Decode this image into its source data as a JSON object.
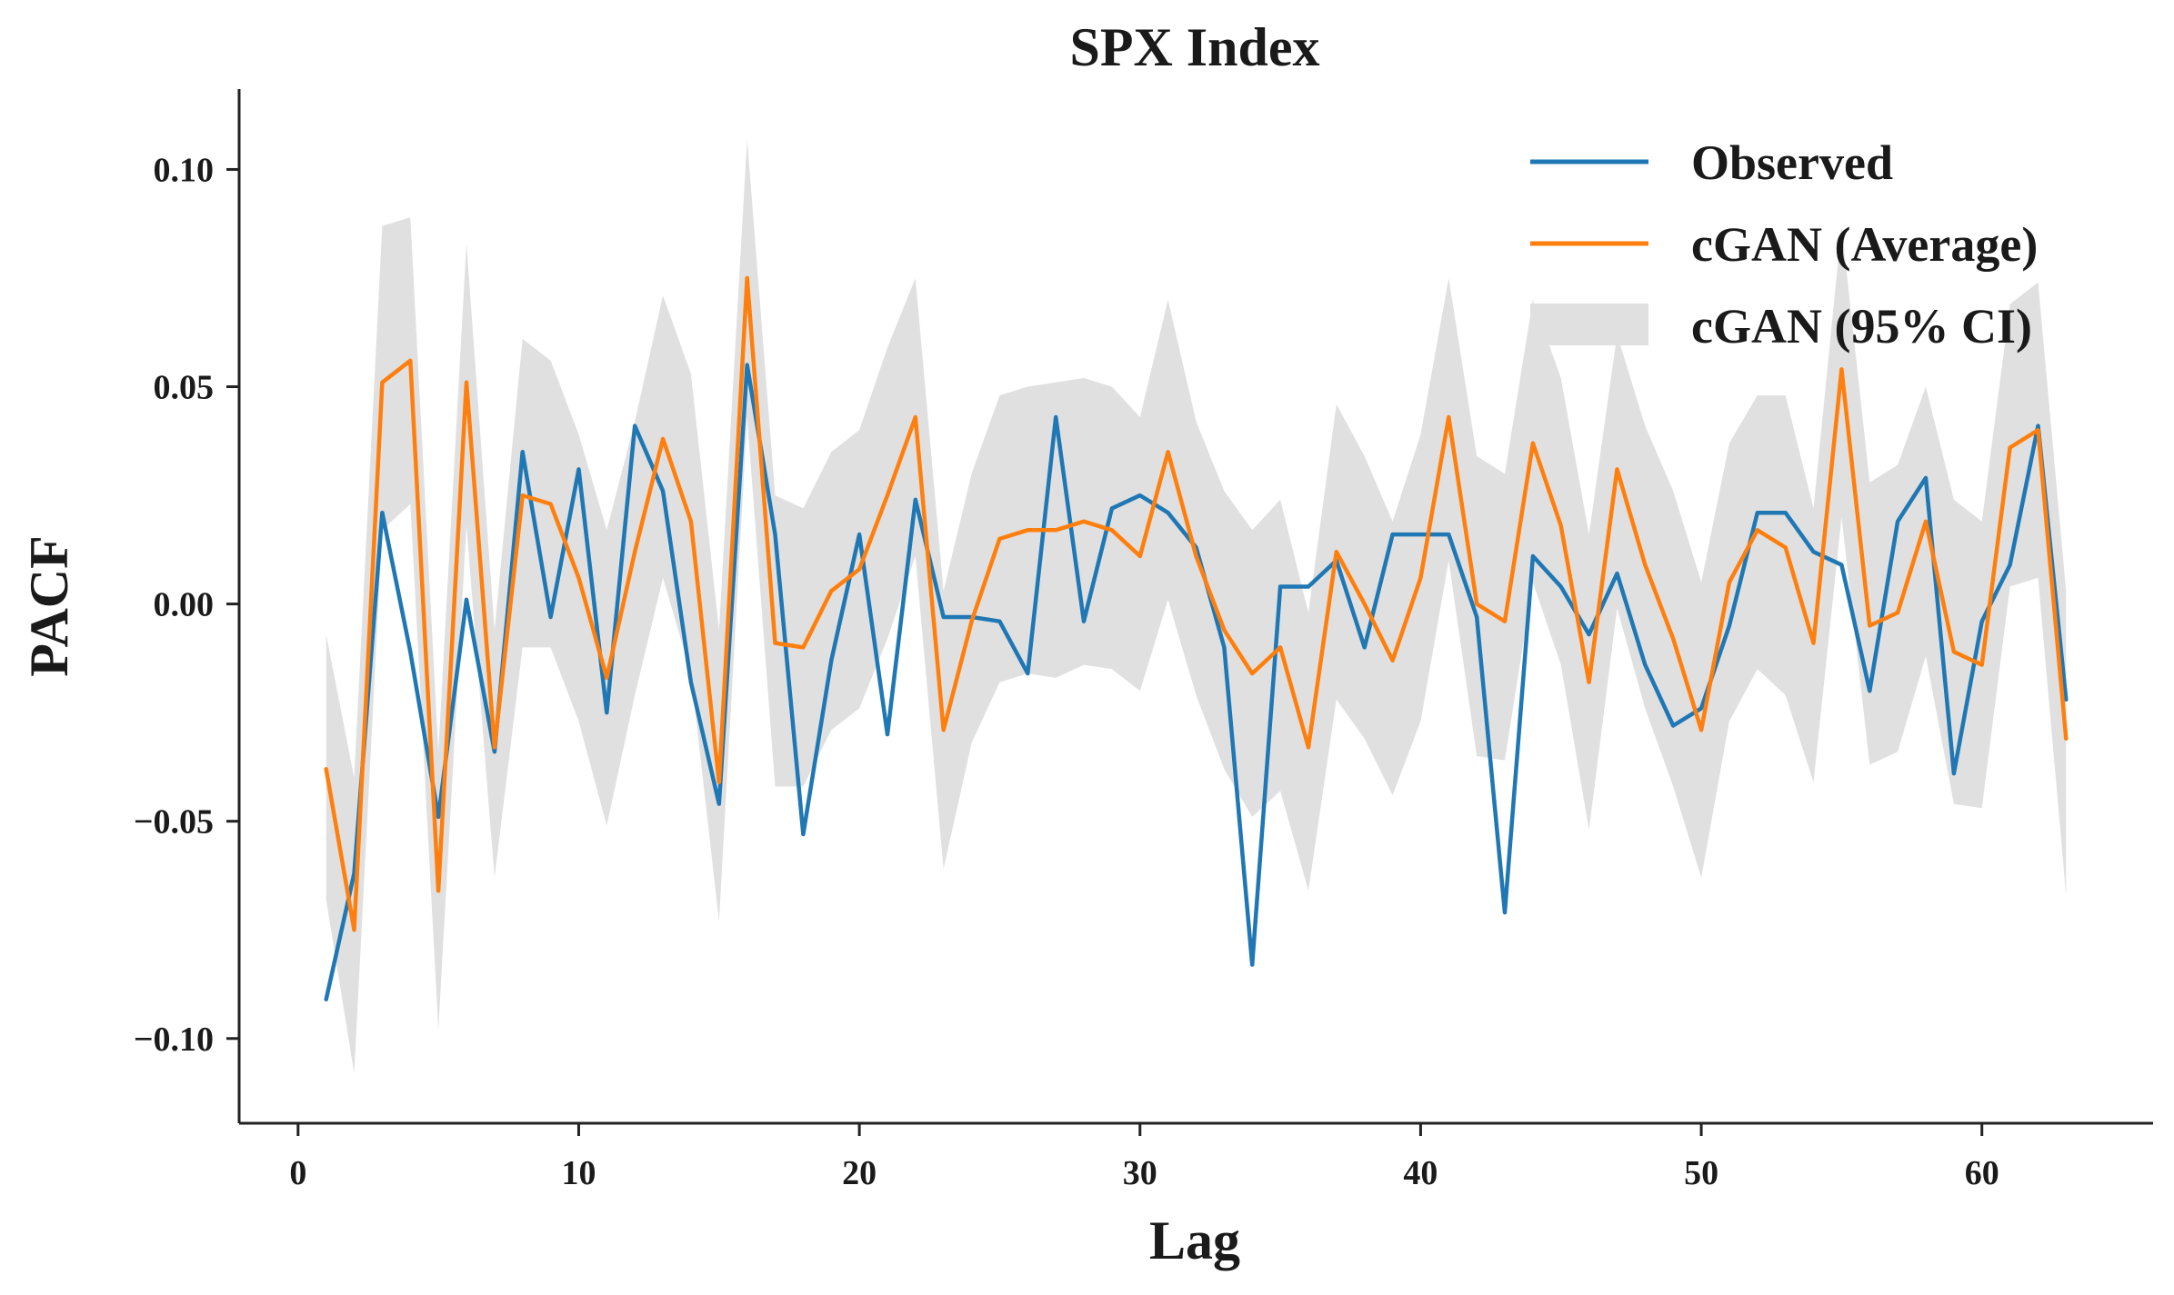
{
  "chart_data": {
    "type": "line",
    "title": "SPX Index",
    "xlabel": "Lag",
    "ylabel": "PACF",
    "xlim": [
      -2.1,
      66.1
    ],
    "ylim": [
      -0.1195,
      0.1185
    ],
    "xticks": [
      0,
      10,
      20,
      30,
      40,
      50,
      60
    ],
    "xtick_labels": [
      "0",
      "10",
      "20",
      "30",
      "40",
      "50",
      "60"
    ],
    "yticks": [
      -0.1,
      -0.05,
      0.0,
      0.05,
      0.1
    ],
    "ytick_labels": [
      "−0.10",
      "−0.05",
      "0.00",
      "0.05",
      "0.10"
    ],
    "grid": false,
    "legend_position": "top-right",
    "x": [
      1,
      2,
      3,
      4,
      5,
      6,
      7,
      8,
      9,
      10,
      11,
      12,
      13,
      14,
      15,
      16,
      17,
      18,
      19,
      20,
      21,
      22,
      23,
      24,
      25,
      26,
      27,
      28,
      29,
      30,
      31,
      32,
      33,
      34,
      35,
      36,
      37,
      38,
      39,
      40,
      41,
      42,
      43,
      44,
      45,
      46,
      47,
      48,
      49,
      50,
      51,
      52,
      53,
      54,
      55,
      56,
      57,
      58,
      59,
      60,
      61,
      62,
      63
    ],
    "series": [
      {
        "name": "Observed",
        "color": "#1f77b4",
        "values": [
          -0.091,
          -0.062,
          0.021,
          -0.011,
          -0.049,
          0.001,
          -0.034,
          0.035,
          -0.003,
          0.031,
          -0.025,
          0.041,
          0.026,
          -0.018,
          -0.046,
          0.055,
          0.016,
          -0.053,
          -0.013,
          0.016,
          -0.03,
          0.024,
          -0.003,
          -0.003,
          -0.004,
          -0.016,
          0.043,
          -0.004,
          0.022,
          0.025,
          0.021,
          0.013,
          -0.01,
          -0.083,
          0.004,
          0.004,
          0.01,
          -0.01,
          0.016,
          0.016,
          0.016,
          -0.003,
          -0.071,
          0.011,
          0.004,
          -0.007,
          0.007,
          -0.014,
          -0.028,
          -0.024,
          -0.005,
          0.021,
          0.021,
          0.012,
          0.009,
          -0.02,
          0.019,
          0.029,
          -0.039,
          -0.004,
          0.009,
          0.041,
          -0.022
        ]
      },
      {
        "name": "cGAN (Average)",
        "color": "#ff7f0e",
        "values": [
          -0.038,
          -0.075,
          0.051,
          0.056,
          -0.066,
          0.051,
          -0.033,
          0.025,
          0.023,
          0.006,
          -0.017,
          0.012,
          0.038,
          0.019,
          -0.041,
          0.075,
          -0.009,
          -0.01,
          0.003,
          0.008,
          0.025,
          0.043,
          -0.029,
          -0.004,
          0.015,
          0.017,
          0.017,
          0.019,
          0.017,
          0.011,
          0.035,
          0.011,
          -0.006,
          -0.016,
          -0.01,
          -0.033,
          0.012,
          0.0,
          -0.013,
          0.006,
          0.043,
          0.0,
          -0.004,
          0.037,
          0.018,
          -0.018,
          0.031,
          0.009,
          -0.008,
          -0.029,
          0.005,
          0.017,
          0.013,
          -0.009,
          0.054,
          -0.005,
          -0.002,
          0.019,
          -0.011,
          -0.014,
          0.036,
          0.04,
          -0.031
        ]
      }
    ],
    "ci_band": {
      "name": "cGAN (95% CI)",
      "color": "#e0e0e0",
      "upper": [
        -0.007,
        -0.04,
        0.087,
        0.089,
        -0.034,
        0.083,
        -0.006,
        0.061,
        0.056,
        0.039,
        0.017,
        0.042,
        0.071,
        0.053,
        -0.006,
        0.107,
        0.025,
        0.022,
        0.035,
        0.04,
        0.059,
        0.075,
        0.003,
        0.03,
        0.048,
        0.05,
        0.051,
        0.052,
        0.05,
        0.043,
        0.07,
        0.042,
        0.026,
        0.017,
        0.024,
        -0.002,
        0.046,
        0.034,
        0.019,
        0.039,
        0.075,
        0.034,
        0.03,
        0.07,
        0.052,
        0.016,
        0.062,
        0.041,
        0.026,
        0.005,
        0.037,
        0.048,
        0.048,
        0.022,
        0.087,
        0.028,
        0.032,
        0.05,
        0.024,
        0.019,
        0.069,
        0.074,
        0.003
      ],
      "lower": [
        -0.068,
        -0.108,
        0.017,
        0.023,
        -0.098,
        0.018,
        -0.063,
        -0.01,
        -0.01,
        -0.027,
        -0.051,
        -0.021,
        0.006,
        -0.016,
        -0.073,
        0.043,
        -0.042,
        -0.042,
        -0.029,
        -0.024,
        -0.008,
        0.011,
        -0.061,
        -0.032,
        -0.018,
        -0.016,
        -0.017,
        -0.014,
        -0.015,
        -0.02,
        0.001,
        -0.021,
        -0.038,
        -0.049,
        -0.043,
        -0.066,
        -0.022,
        -0.031,
        -0.044,
        -0.027,
        0.01,
        -0.035,
        -0.036,
        0.005,
        -0.014,
        -0.052,
        -0.001,
        -0.024,
        -0.042,
        -0.063,
        -0.027,
        -0.015,
        -0.021,
        -0.041,
        0.02,
        -0.037,
        -0.034,
        -0.012,
        -0.046,
        -0.047,
        0.004,
        0.006,
        -0.067
      ]
    }
  }
}
